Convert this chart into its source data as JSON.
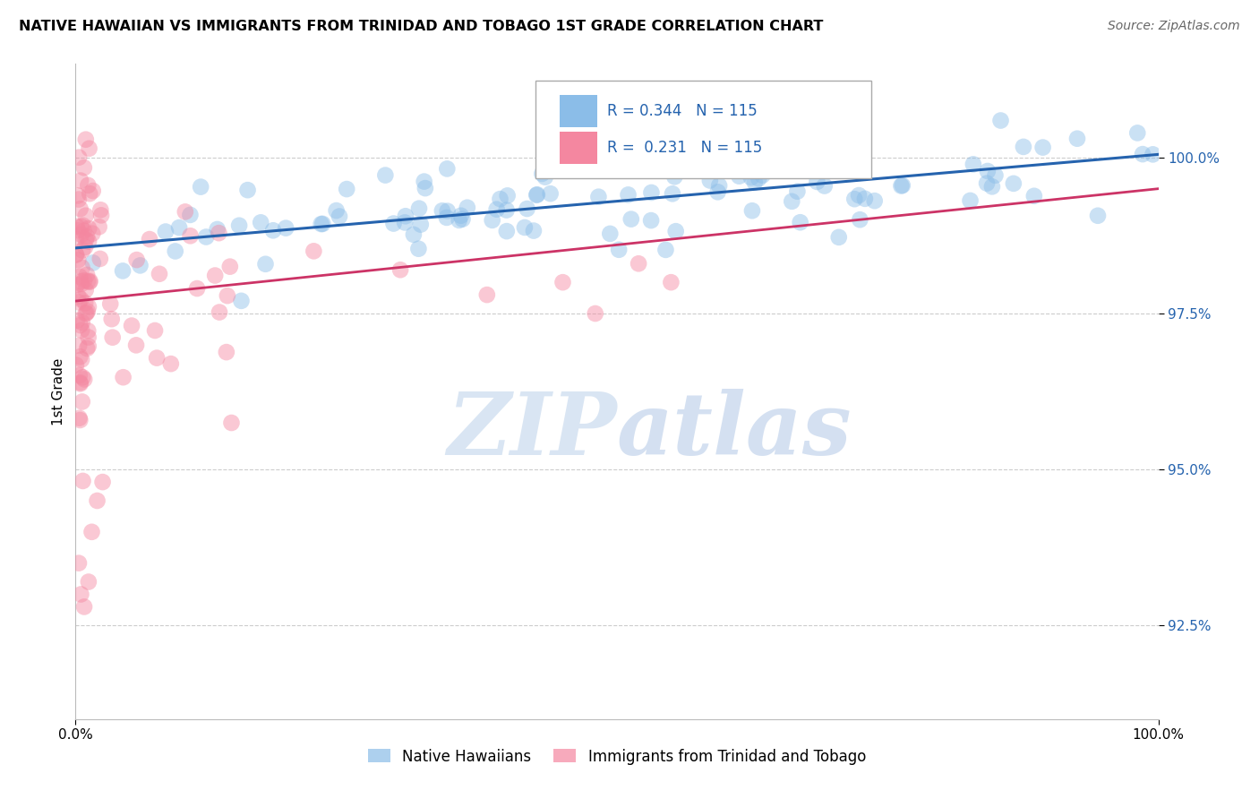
{
  "title": "NATIVE HAWAIIAN VS IMMIGRANTS FROM TRINIDAD AND TOBAGO 1ST GRADE CORRELATION CHART",
  "source": "Source: ZipAtlas.com",
  "ylabel": "1st Grade",
  "y_tick_values": [
    92.5,
    95.0,
    97.5,
    100.0
  ],
  "xlim": [
    0.0,
    100.0
  ],
  "ylim": [
    91.0,
    101.5
  ],
  "R_blue": 0.344,
  "N_blue": 115,
  "R_pink": 0.231,
  "N_pink": 115,
  "legend_labels": [
    "Native Hawaiians",
    "Immigrants from Trinidad and Tobago"
  ],
  "blue_color": "#8bbde8",
  "pink_color": "#f487a0",
  "trendline_blue": "#2563ae",
  "trendline_pink": "#cc3366",
  "watermark_zip": "#d0dff0",
  "watermark_atlas": "#b8cce8",
  "grid_color": "#cccccc",
  "ytick_color": "#2563ae",
  "background": "#ffffff",
  "blue_trend_y0": 98.55,
  "blue_trend_y1": 100.05,
  "pink_trend_y0": 97.7,
  "pink_trend_y1": 99.5
}
